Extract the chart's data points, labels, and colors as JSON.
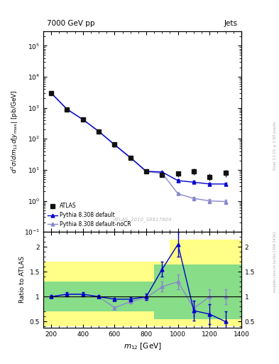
{
  "title_left": "7000 GeV pp",
  "title_right": "Jets",
  "watermark": "ATLAS_2010_S8817804",
  "right_label": "mcplots.cern.ch [arXiv:1306.3436]",
  "right_label2": "Rivet 3.1.10, ≥ 3.5M events",
  "xlabel": "m_{12} [GeV]",
  "ylabel": "d^{2}\\sigma/dm_{12}d|y_{max}| [pb/GeV]",
  "ratio_ylabel": "Ratio to ATLAS",
  "atlas_x": [
    200,
    300,
    400,
    500,
    600,
    700,
    800,
    900,
    1000,
    1100,
    1200,
    1300
  ],
  "atlas_y": [
    3000,
    900,
    420,
    175,
    65,
    25,
    9.0,
    7.0,
    7.5,
    9.0,
    6.0,
    8.0
  ],
  "atlas_yerr_lo": [
    150,
    50,
    25,
    10,
    4,
    1.5,
    1.0,
    1.0,
    1.5,
    2.0,
    1.5,
    2.0
  ],
  "atlas_yerr_hi": [
    150,
    50,
    25,
    10,
    4,
    1.5,
    1.0,
    1.0,
    1.5,
    2.0,
    1.5,
    2.0
  ],
  "py_def_x": [
    200,
    300,
    400,
    500,
    600,
    700,
    800,
    900,
    1000,
    1100,
    1200,
    1300
  ],
  "py_def_y": [
    3000,
    900,
    420,
    175,
    65,
    25,
    9.0,
    8.5,
    4.5,
    4.0,
    3.5,
    3.5
  ],
  "py_def_yerr": [
    50,
    20,
    10,
    5,
    2,
    0.5,
    0.3,
    0.3,
    0.4,
    0.4,
    0.4,
    0.4
  ],
  "py_nocr_x": [
    200,
    300,
    400,
    500,
    600,
    700,
    800,
    900,
    1000,
    1100,
    1200,
    1300
  ],
  "py_nocr_y": [
    3000,
    900,
    415,
    172,
    63,
    24,
    8.8,
    7.8,
    1.7,
    1.2,
    1.0,
    0.95
  ],
  "py_nocr_yerr": [
    50,
    20,
    10,
    5,
    2,
    0.5,
    0.3,
    0.3,
    0.15,
    0.15,
    0.15,
    0.15
  ],
  "ratio_py_def": [
    1.0,
    1.05,
    1.05,
    1.0,
    0.95,
    0.95,
    1.0,
    1.55,
    2.05,
    0.72,
    0.65,
    0.5
  ],
  "ratio_py_def_err": [
    0.03,
    0.04,
    0.04,
    0.03,
    0.03,
    0.04,
    0.06,
    0.15,
    0.25,
    0.2,
    0.2,
    0.2
  ],
  "ratio_py_nocr": [
    1.0,
    1.05,
    1.05,
    1.0,
    0.78,
    0.9,
    0.98,
    1.2,
    1.3,
    0.77,
    1.0,
    1.0
  ],
  "ratio_py_nocr_err": [
    0.03,
    0.04,
    0.04,
    0.03,
    0.03,
    0.04,
    0.05,
    0.1,
    0.15,
    0.15,
    0.15,
    0.15
  ],
  "band_x_edges": [
    150,
    500,
    700,
    850,
    950,
    1150,
    1400
  ],
  "band_yellow_lo": [
    0.4,
    0.4,
    0.4,
    0.4,
    0.4,
    0.4,
    0.4
  ],
  "band_yellow_hi": [
    1.7,
    1.7,
    1.7,
    1.7,
    2.15,
    2.15,
    2.15
  ],
  "band_green_lo": [
    0.7,
    0.7,
    0.7,
    0.55,
    0.55,
    0.55,
    0.55
  ],
  "band_green_hi": [
    1.3,
    1.3,
    1.3,
    1.65,
    1.65,
    1.65,
    1.65
  ],
  "atlas_color": "#111111",
  "py_def_color": "#0000cc",
  "py_nocr_color": "#8888cc",
  "ylim_main": [
    0.1,
    300000.0
  ],
  "ylim_ratio": [
    0.38,
    2.3
  ],
  "xlim": [
    150,
    1400
  ]
}
